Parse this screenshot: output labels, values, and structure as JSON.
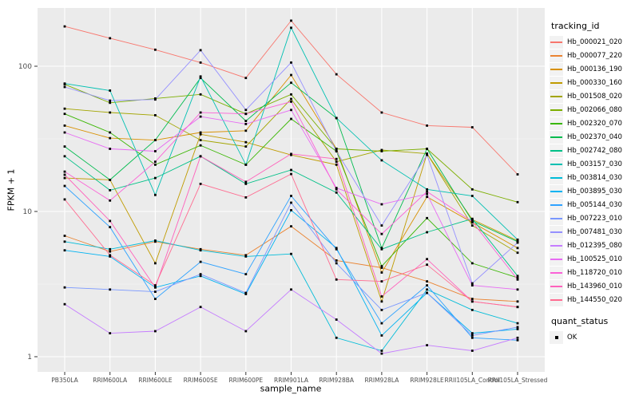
{
  "chart_data": {
    "type": "line",
    "title": "",
    "xlabel": "sample_name",
    "ylabel": "FPKM + 1",
    "y_scale": "log10",
    "y_ticks": [
      1,
      10,
      100
    ],
    "y_tick_labels": [
      "1",
      "10",
      "100"
    ],
    "y_minor_ticks": [
      3.162,
      31.62
    ],
    "ylim_log10": [
      -0.1,
      2.4
    ],
    "grid": "on",
    "legend_position": "right",
    "legend_title": "tracking_id",
    "categories": [
      "PB350LA",
      "RRIM600LA",
      "RRIM600LE",
      "RRIM600SE",
      "RRIM600PE",
      "RRIM901LA",
      "RRIM928BA",
      "RRIM928LA",
      "RRIM928LE",
      "RRII105LA_Control",
      "RRII105LA_Stressed"
    ],
    "series": [
      {
        "name": "Hb_000021_020",
        "color": "#F8766D",
        "values": [
          188,
          156,
          130,
          106,
          83,
          206,
          88,
          48,
          39,
          38,
          18
        ]
      },
      {
        "name": "Hb_000077_220",
        "color": "#EA8331",
        "values": [
          6.8,
          5.3,
          6.2,
          5.5,
          5.0,
          7.9,
          4.6,
          4.1,
          3.3,
          2.5,
          2.4
        ]
      },
      {
        "name": "Hb_000136_190",
        "color": "#D89000",
        "values": [
          39,
          32,
          31,
          35,
          36,
          87,
          27,
          3.8,
          12.6,
          8.4,
          5.6
        ]
      },
      {
        "name": "Hb_000330_160",
        "color": "#C09B00",
        "values": [
          17,
          16.5,
          4.4,
          34,
          30,
          24.5,
          21,
          2.4,
          25,
          8.8,
          6.3
        ]
      },
      {
        "name": "Hb_001508_020",
        "color": "#A3A500",
        "values": [
          51,
          48,
          46,
          31,
          28,
          59.5,
          22,
          26.5,
          25,
          8.0,
          5.2
        ]
      },
      {
        "name": "Hb_002066_080",
        "color": "#7CAE00",
        "values": [
          75,
          56,
          60,
          64,
          47,
          64,
          27,
          26,
          27,
          14.2,
          11.6
        ]
      },
      {
        "name": "Hb_002320_070",
        "color": "#39B600",
        "values": [
          47,
          35,
          21,
          28.5,
          21,
          43.4,
          26,
          4.2,
          9.0,
          4.4,
          3.5
        ]
      },
      {
        "name": "Hb_002370_040",
        "color": "#00BB4E",
        "values": [
          28,
          16.5,
          31,
          83,
          42,
          77,
          44,
          5.6,
          27,
          8.6,
          6.2
        ]
      },
      {
        "name": "Hb_002742_080",
        "color": "#00C087",
        "values": [
          24,
          14,
          17,
          24,
          15.5,
          19.3,
          13.5,
          5.5,
          7.2,
          8.9,
          3.6
        ]
      },
      {
        "name": "Hb_003157_030",
        "color": "#00C0B2",
        "values": [
          76,
          68,
          13,
          85,
          21,
          184,
          44,
          22.5,
          14.2,
          12.8,
          6.4
        ]
      },
      {
        "name": "Hb_003814_030",
        "color": "#00BCD8",
        "values": [
          6.2,
          5.5,
          6.3,
          5.4,
          4.9,
          5.1,
          1.35,
          1.1,
          2.9,
          2.1,
          1.7
        ]
      },
      {
        "name": "Hb_003895_030",
        "color": "#00B3F2",
        "values": [
          5.4,
          4.9,
          3.0,
          3.6,
          2.7,
          10.2,
          5.6,
          1.4,
          2.75,
          1.45,
          1.55
        ]
      },
      {
        "name": "Hb_005144_030",
        "color": "#2FA2FF",
        "values": [
          15,
          7.8,
          2.5,
          4.5,
          3.7,
          12.8,
          5.5,
          1.7,
          3.1,
          1.35,
          1.3
        ]
      },
      {
        "name": "Hb_007223_010",
        "color": "#7997FF",
        "values": [
          3.0,
          2.9,
          2.8,
          3.7,
          2.75,
          11.5,
          4.4,
          2.1,
          2.75,
          1.4,
          1.6
        ]
      },
      {
        "name": "Hb_007481_030",
        "color": "#9590FF",
        "values": [
          72,
          58,
          59,
          129,
          50,
          106,
          26,
          8.0,
          24.5,
          3.2,
          6.1
        ]
      },
      {
        "name": "Hb_012395_080",
        "color": "#C57CFF",
        "values": [
          2.3,
          1.45,
          1.5,
          2.2,
          1.5,
          2.9,
          1.8,
          1.05,
          1.2,
          1.1,
          1.35
        ]
      },
      {
        "name": "Hb_100525_010",
        "color": "#E76BF3",
        "values": [
          35,
          27,
          26,
          45,
          40,
          50,
          14.5,
          11.2,
          13.2,
          3.1,
          2.9
        ]
      },
      {
        "name": "Hb_118720_010",
        "color": "#FB61D7",
        "values": [
          18.8,
          11.9,
          22,
          48,
          47,
          57,
          14.2,
          7.0,
          13.7,
          8.5,
          3.4
        ]
      },
      {
        "name": "Hb_143960_010",
        "color": "#FF62BC",
        "values": [
          17.9,
          8.6,
          3.0,
          24,
          16,
          24.9,
          23,
          2.6,
          4.7,
          2.4,
          2.2
        ]
      },
      {
        "name": "Hb_144550_020",
        "color": "#FF6C91",
        "values": [
          12.1,
          5.0,
          3.1,
          15.5,
          12.5,
          18.1,
          3.4,
          3.3,
          4.3,
          2.4,
          2.2
        ]
      }
    ],
    "point_legend": {
      "title": "quant_status",
      "items": [
        {
          "label": "OK",
          "shape": "square",
          "color": "#000000"
        }
      ]
    },
    "point_shape": "square",
    "point_color": "#000000"
  },
  "colors": {
    "panel_bg": "#EBEBEB",
    "grid_major": "#FFFFFF",
    "grid_minor": "#FFFFFF",
    "tick_label": "#4D4D4D",
    "tick_mark": "#333333",
    "legend_key_bg": "#F2F2F2",
    "background": "#FFFFFF"
  }
}
